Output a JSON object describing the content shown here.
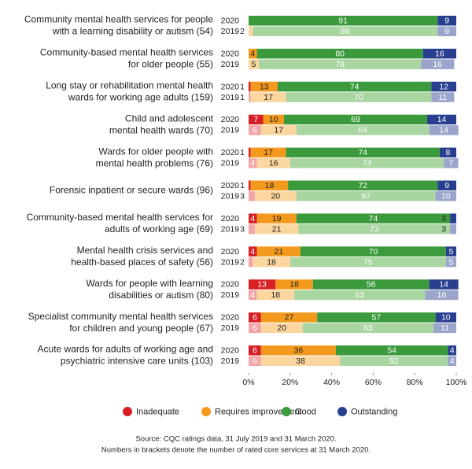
{
  "chart_data": {
    "type": "bar",
    "orientation": "horizontal",
    "stacked": true,
    "categories": [
      [
        "Community mental health services for people",
        "with a learning disability or autism (54)"
      ],
      [
        "Community-based mental health services",
        "for older people (55)"
      ],
      [
        "Long stay or rehabilitation mental health",
        "wards for working age adults (159)"
      ],
      [
        "Child and adolescent",
        "mental health wards (70)"
      ],
      [
        "Wards for older people with",
        "mental health problems (76)"
      ],
      [
        "Forensic inpatient or secure wards (96)"
      ],
      [
        "Community-based mental health services for",
        "adults of working age (69)"
      ],
      [
        "Mental health crisis services and",
        "health-based places of safety (56)"
      ],
      [
        "Wards for people with learning",
        "disabilities or autism (80)"
      ],
      [
        "Specialist community mental health services",
        "for children and young people (67)"
      ],
      [
        "Acute wards for adults of working age and",
        "psychiatric intensive care units (103)"
      ]
    ],
    "years": [
      "2020",
      "2019"
    ],
    "series": [
      {
        "name": "Inadequate",
        "color": "#d71f26",
        "light_color": "#f2a5a8",
        "values": [
          [
            null,
            null
          ],
          [
            null,
            null
          ],
          [
            1,
            1
          ],
          [
            7,
            6
          ],
          [
            1,
            4
          ],
          [
            1,
            3
          ],
          [
            4,
            3
          ],
          [
            4,
            2
          ],
          [
            13,
            4
          ],
          [
            6,
            6
          ],
          [
            6,
            6
          ]
        ]
      },
      {
        "name": "Requires improvement",
        "color": "#f39a1e",
        "light_color": "#fbd69f",
        "values": [
          [
            null,
            2
          ],
          [
            4,
            5
          ],
          [
            13,
            17
          ],
          [
            10,
            17
          ],
          [
            17,
            16
          ],
          [
            18,
            20
          ],
          [
            19,
            21
          ],
          [
            21,
            18
          ],
          [
            18,
            18
          ],
          [
            27,
            20
          ],
          [
            36,
            38
          ]
        ]
      },
      {
        "name": "Good",
        "color": "#3b9a3b",
        "light_color": "#a9d5a1",
        "values": [
          [
            91,
            89
          ],
          [
            80,
            78
          ],
          [
            74,
            70
          ],
          [
            69,
            64
          ],
          [
            74,
            74
          ],
          [
            72,
            67
          ],
          [
            74,
            73
          ],
          [
            70,
            75
          ],
          [
            56,
            63
          ],
          [
            57,
            63
          ],
          [
            54,
            52
          ]
        ]
      },
      {
        "name": "Outstanding",
        "color": "#273f8e",
        "light_color": "#9ba5cc",
        "values": [
          [
            9,
            9
          ],
          [
            16,
            16
          ],
          [
            12,
            11
          ],
          [
            14,
            14
          ],
          [
            8,
            7
          ],
          [
            9,
            10
          ],
          [
            3,
            3
          ],
          [
            5,
            5
          ],
          [
            14,
            16
          ],
          [
            10,
            11
          ],
          [
            4,
            4
          ]
        ]
      }
    ],
    "xlim": [
      0,
      100
    ],
    "xticks": [
      {
        "value": 0,
        "label": "0%"
      },
      {
        "value": 20,
        "label": "20%"
      },
      {
        "value": 40,
        "label": "40%"
      },
      {
        "value": 60,
        "label": "60%"
      },
      {
        "value": 80,
        "label": "80%"
      },
      {
        "value": 100,
        "label": "100%"
      }
    ],
    "notes": [
      "Source: CQC ratings data, 31 July 2019 and 31 March 2020.",
      "Numbers in brackets denote the number of rated core services at 31 March 2020."
    ]
  }
}
